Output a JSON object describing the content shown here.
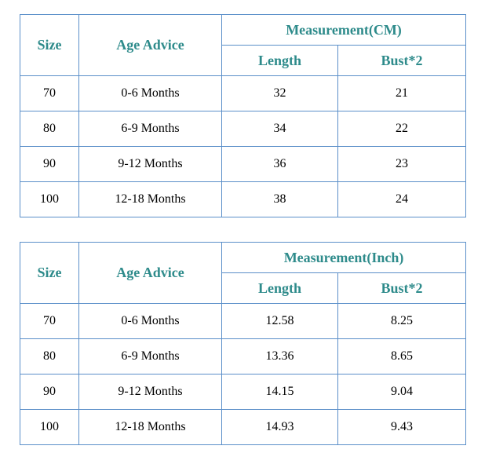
{
  "tables": [
    {
      "id": "cm",
      "size_header": "Size",
      "age_header": "Age Advice",
      "measurement_header": "Measurement(CM)",
      "length_header": "Length",
      "bust_header": "Bust*2",
      "rows": [
        {
          "size": "70",
          "age": "0-6 Months",
          "length": "32",
          "bust": "21"
        },
        {
          "size": "80",
          "age": "6-9 Months",
          "length": "34",
          "bust": "22"
        },
        {
          "size": "90",
          "age": "9-12 Months",
          "length": "36",
          "bust": "23"
        },
        {
          "size": "100",
          "age": "12-18 Months",
          "length": "38",
          "bust": "24"
        }
      ]
    },
    {
      "id": "inch",
      "size_header": "Size",
      "age_header": "Age Advice",
      "measurement_header": "Measurement(Inch)",
      "length_header": "Length",
      "bust_header": "Bust*2",
      "rows": [
        {
          "size": "70",
          "age": "0-6 Months",
          "length": "12.58",
          "bust": "8.25"
        },
        {
          "size": "80",
          "age": "6-9 Months",
          "length": "13.36",
          "bust": "8.65"
        },
        {
          "size": "90",
          "age": "9-12 Months",
          "length": "14.15",
          "bust": "9.04"
        },
        {
          "size": "100",
          "age": "12-18 Months",
          "length": "14.93",
          "bust": "9.43"
        }
      ]
    }
  ],
  "colors": {
    "header_text": "#2e8b8b",
    "border": "#5b8fc9",
    "body_text": "#000000"
  }
}
